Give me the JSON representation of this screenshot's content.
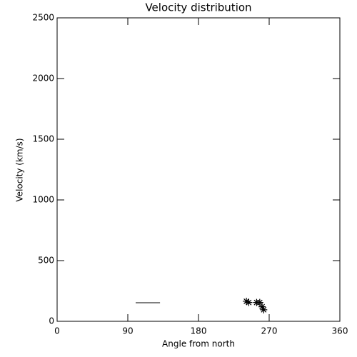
{
  "chart_data": {
    "type": "scatter",
    "title": "Velocity distribution",
    "x_label": "Angle from north",
    "y_label": "Velocity (km/s)",
    "xlim": [
      0,
      360
    ],
    "xticks": [
      0,
      90,
      180,
      270,
      360
    ],
    "ylim": [
      0,
      2500
    ],
    "yticks": [
      0,
      500,
      1000,
      1500,
      2000,
      2500
    ],
    "series": [
      {
        "color": "#000000",
        "marker": "asterisk",
        "x": [
          241,
          244,
          254,
          258,
          261,
          263
        ],
        "values": [
          165,
          155,
          155,
          155,
          120,
          95
        ]
      },
      {
        "color": "#000000",
        "marker": "line",
        "x": [
          100,
          131
        ],
        "values": [
          153,
          153
        ]
      }
    ]
  }
}
